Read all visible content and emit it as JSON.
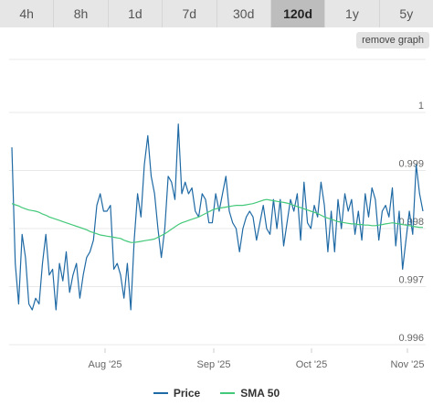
{
  "range_tabs": [
    {
      "label": "4h",
      "active": false
    },
    {
      "label": "8h",
      "active": false
    },
    {
      "label": "1d",
      "active": false
    },
    {
      "label": "7d",
      "active": false
    },
    {
      "label": "30d",
      "active": false
    },
    {
      "label": "120d",
      "active": true
    },
    {
      "label": "1y",
      "active": false
    },
    {
      "label": "5y",
      "active": false
    }
  ],
  "remove_graph_label": "remove graph",
  "colors": {
    "price": "#1f6aa5",
    "sma": "#44c97a",
    "grid": "#e8e8e8"
  },
  "chart_data": {
    "type": "line",
    "title": "",
    "xlabel": "",
    "ylabel": "",
    "ylim": [
      0.996,
      1.0
    ],
    "y_ticks": [
      {
        "value": 1.0,
        "label": "1"
      },
      {
        "value": 0.999,
        "label": "0.999"
      },
      {
        "value": 0.998,
        "label": "0.998"
      },
      {
        "value": 0.997,
        "label": "0.997"
      },
      {
        "value": 0.996,
        "label": "0.996"
      }
    ],
    "x_ticks": [
      "Aug '25",
      "Sep '25",
      "Oct '25",
      "Nov '25"
    ],
    "legend": "bottom-center",
    "grid": true,
    "series": [
      {
        "name": "Price",
        "values": [
          0.9994,
          0.9974,
          0.9967,
          0.9979,
          0.9975,
          0.9967,
          0.9966,
          0.9968,
          0.9967,
          0.9974,
          0.9979,
          0.9972,
          0.9973,
          0.9966,
          0.9974,
          0.9971,
          0.9976,
          0.9969,
          0.9972,
          0.9974,
          0.9968,
          0.9972,
          0.9975,
          0.9976,
          0.9978,
          0.9984,
          0.9986,
          0.9983,
          0.9983,
          0.9984,
          0.9973,
          0.9974,
          0.9972,
          0.9968,
          0.9974,
          0.9966,
          0.9978,
          0.9986,
          0.9982,
          0.9991,
          0.9996,
          0.9989,
          0.9986,
          0.998,
          0.9975,
          0.998,
          0.9989,
          0.9988,
          0.9985,
          0.9998,
          0.9986,
          0.9988,
          0.9986,
          0.9987,
          0.9983,
          0.9982,
          0.9986,
          0.9985,
          0.9981,
          0.9981,
          0.9986,
          0.9983,
          0.9986,
          0.9989,
          0.9983,
          0.9981,
          0.998,
          0.9976,
          0.998,
          0.9982,
          0.9983,
          0.9982,
          0.9978,
          0.9981,
          0.9984,
          0.998,
          0.9979,
          0.9985,
          0.998,
          0.9985,
          0.9977,
          0.9981,
          0.9985,
          0.9983,
          0.9986,
          0.9978,
          0.9988,
          0.9981,
          0.998,
          0.9984,
          0.9982,
          0.9988,
          0.9984,
          0.9976,
          0.9983,
          0.9976,
          0.9985,
          0.998,
          0.9986,
          0.9983,
          0.9985,
          0.9979,
          0.9983,
          0.9978,
          0.9986,
          0.9982,
          0.9987,
          0.9985,
          0.9978,
          0.9983,
          0.9984,
          0.9982,
          0.9987,
          0.9977,
          0.9983,
          0.9973,
          0.9978,
          0.9983,
          0.9979,
          0.9991,
          0.9986,
          0.9983
        ]
      },
      {
        "name": "SMA 50",
        "values": [
          0.99843,
          0.99841,
          0.99839,
          0.99836,
          0.99834,
          0.99832,
          0.99831,
          0.9983,
          0.99828,
          0.99825,
          0.99823,
          0.9982,
          0.99818,
          0.99816,
          0.99814,
          0.99812,
          0.9981,
          0.99808,
          0.99806,
          0.99804,
          0.99802,
          0.998,
          0.99798,
          0.99795,
          0.99793,
          0.99791,
          0.99789,
          0.99788,
          0.99787,
          0.99786,
          0.99785,
          0.99784,
          0.99783,
          0.9978,
          0.99778,
          0.99776,
          0.99776,
          0.99777,
          0.99778,
          0.99779,
          0.9978,
          0.99781,
          0.99782,
          0.99785,
          0.99788,
          0.99791,
          0.99795,
          0.99799,
          0.99803,
          0.99807,
          0.9981,
          0.99812,
          0.99814,
          0.99816,
          0.99818,
          0.9982,
          0.99823,
          0.99826,
          0.99829,
          0.99832,
          0.99834,
          0.99835,
          0.99836,
          0.99837,
          0.99838,
          0.99839,
          0.9984,
          0.9984,
          0.9984,
          0.99841,
          0.99842,
          0.99843,
          0.99845,
          0.99847,
          0.99849,
          0.9985,
          0.99849,
          0.99848,
          0.99847,
          0.99846,
          0.99845,
          0.99844,
          0.99842,
          0.9984,
          0.99838,
          0.99836,
          0.99834,
          0.99832,
          0.9983,
          0.99828,
          0.99826,
          0.99823,
          0.9982,
          0.99818,
          0.99816,
          0.99814,
          0.99812,
          0.99811,
          0.9981,
          0.99809,
          0.99808,
          0.99808,
          0.99807,
          0.99807,
          0.99806,
          0.99806,
          0.99805,
          0.99805,
          0.99806,
          0.99807,
          0.99808,
          0.99809,
          0.9981,
          0.99809,
          0.99808,
          0.99807,
          0.99806,
          0.99805,
          0.99804,
          0.99803,
          0.99802,
          0.99802
        ]
      }
    ]
  }
}
